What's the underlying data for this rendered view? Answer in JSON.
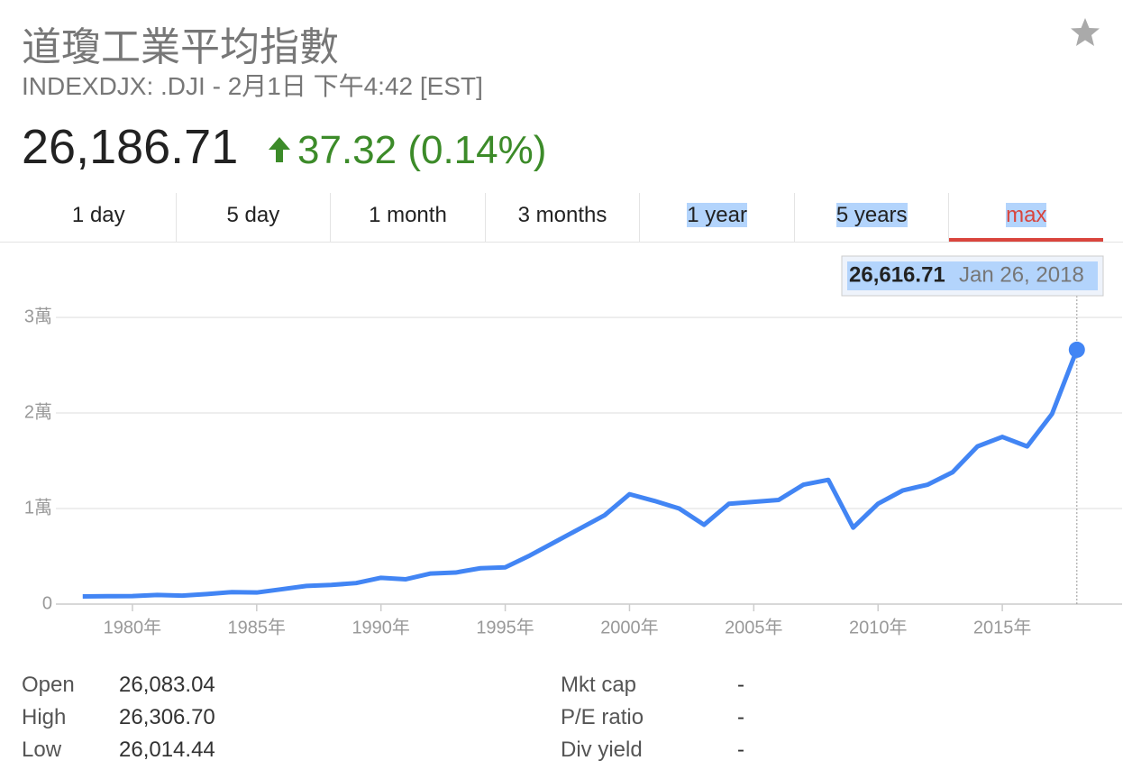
{
  "header": {
    "title": "道瓊工業平均指數",
    "subtitle": "INDEXDJX: .DJI - 2月1日 下午4:42 [EST]",
    "price": "26,186.71",
    "change": "37.32 (0.14%)"
  },
  "tabs": [
    "1 day",
    "5 day",
    "1 month",
    "3 months",
    "1 year",
    "5 years",
    "max"
  ],
  "chart_data": {
    "type": "line",
    "x": [
      1978,
      1979,
      1980,
      1981,
      1982,
      1983,
      1984,
      1985,
      1986,
      1987,
      1988,
      1989,
      1990,
      1991,
      1992,
      1993,
      1994,
      1995,
      1996,
      1997,
      1998,
      1999,
      2000,
      2001,
      2002,
      2003,
      2004,
      2005,
      2006,
      2007,
      2008,
      2009,
      2010,
      2011,
      2012,
      2013,
      2014,
      2015,
      2016,
      2017,
      2018
    ],
    "series": [
      {
        "color": "#4285f4",
        "values": [
          800,
          820,
          840,
          950,
          880,
          1050,
          1250,
          1210,
          1550,
          1900,
          2000,
          2200,
          2750,
          2600,
          3200,
          3300,
          3750,
          3850,
          5100,
          6500,
          7900,
          9300,
          11500,
          10800,
          10000,
          8300,
          10500,
          10700,
          10900,
          12500,
          13000,
          8000,
          10500,
          11900,
          12500,
          13800,
          16500,
          17500,
          16500,
          19900,
          26616.71
        ]
      }
    ],
    "xlim": [
      1976.92,
      2019.82
    ],
    "ylim": [
      0,
      36800
    ],
    "xticks": [
      {
        "value": 1980,
        "label": "1980年"
      },
      {
        "value": 1985,
        "label": "1985年"
      },
      {
        "value": 1990,
        "label": "1990年"
      },
      {
        "value": 1995,
        "label": "1995年"
      },
      {
        "value": 2000,
        "label": "2000年"
      },
      {
        "value": 2005,
        "label": "2005年"
      },
      {
        "value": 2010,
        "label": "2010年"
      },
      {
        "value": 2015,
        "label": "2015年"
      }
    ],
    "yticks": [
      0,
      {
        "value": 10000,
        "label": "1萬"
      },
      {
        "value": 20000,
        "label": "2萬"
      },
      {
        "value": 30000,
        "label": "3萬"
      }
    ],
    "grid": true,
    "tooltip": {
      "value": 26616.71,
      "label": "26,616.71",
      "date": "Jan 26, 2018"
    }
  },
  "stats": [
    [
      [
        "Open",
        "26,083.04"
      ],
      [
        "High",
        "26,306.70"
      ],
      [
        "Low",
        "26,014.44"
      ]
    ],
    [
      [
        "Mkt cap",
        "-"
      ],
      [
        "P/E ratio",
        "-"
      ],
      [
        "Div yield",
        "-"
      ]
    ]
  ]
}
